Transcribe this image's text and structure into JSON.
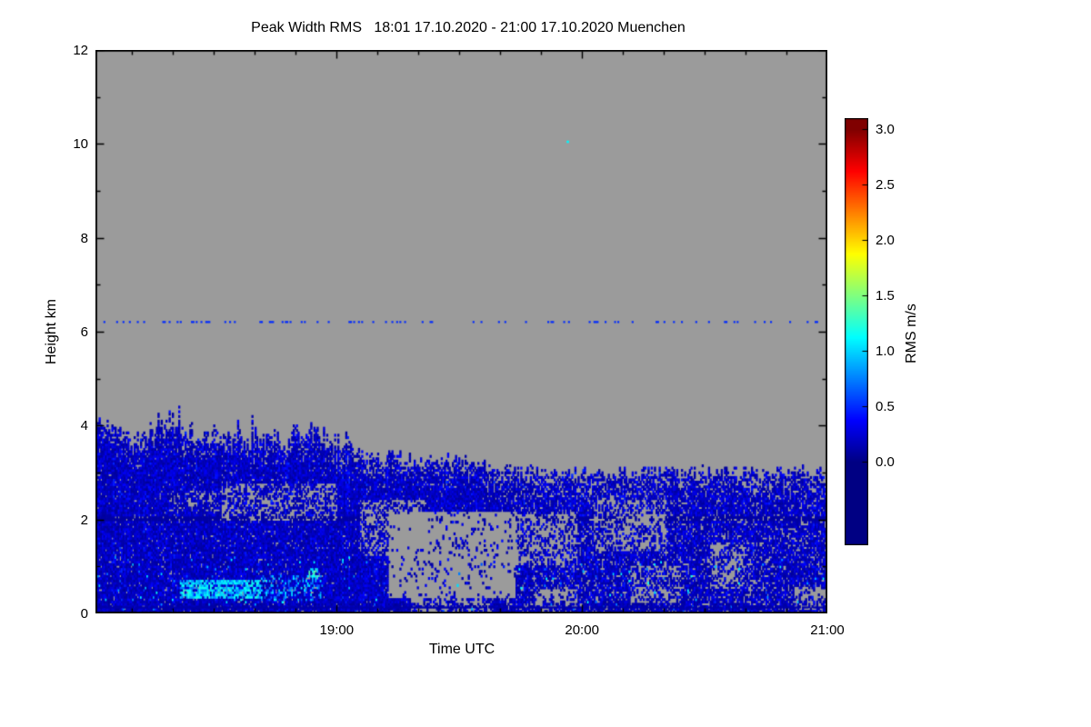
{
  "chart_data": {
    "type": "heatmap",
    "title": "Peak Width RMS   18:01 17.10.2020 - 21:00 17.10.2020 Muenchen",
    "xlabel": "Time UTC",
    "ylabel": "Height km",
    "x_start": "18:01",
    "x_end": "21:00",
    "x_start_min": 1081,
    "x_end_min": 1260,
    "x_minor_step_min": 10,
    "x_ticks": [
      {
        "label": "19:00",
        "frac": 0.3296
      },
      {
        "label": "20:00",
        "frac": 0.6648
      },
      {
        "label": "21:00",
        "frac": 1.0
      }
    ],
    "ylim": [
      0,
      12
    ],
    "y_ticks": [
      {
        "label": "0",
        "value": 0
      },
      {
        "label": "2",
        "value": 2
      },
      {
        "label": "4",
        "value": 4
      },
      {
        "label": "6",
        "value": 6
      },
      {
        "label": "8",
        "value": 8
      },
      {
        "label": "10",
        "value": 10
      },
      {
        "label": "12",
        "value": 12
      }
    ],
    "y_minor_step": 1,
    "no_data_color": "#9b9b9b",
    "colorbar": {
      "label": "RMS m/s",
      "range": [
        0,
        3
      ],
      "colormap": "jet",
      "ticks": [
        {
          "label": "3.0",
          "value": 3.0
        },
        {
          "label": "2.5",
          "value": 2.5
        },
        {
          "label": "2.0",
          "value": 2.0
        },
        {
          "label": "1.5",
          "value": 1.5
        },
        {
          "label": "1.0",
          "value": 1.0
        },
        {
          "label": "0.5",
          "value": 0.5
        },
        {
          "label": "0.0",
          "value": 0.0
        }
      ],
      "anchors": [
        [
          0.0,
          0,
          0,
          131
        ],
        [
          0.125,
          0,
          0,
          255
        ],
        [
          0.375,
          0,
          255,
          255
        ],
        [
          0.625,
          255,
          255,
          0
        ],
        [
          0.875,
          255,
          0,
          0
        ],
        [
          1.0,
          128,
          0,
          0
        ]
      ]
    },
    "description": "Time-height radar quicklook of peak width RMS. Echoes (RMS mostly 0.1-0.5 m/s, blue) are confined below about 4 km at 18:01, the echo top lowering to about 3 km after 19:30 and staying near 3 km until 21:00. Brighter cyan values near 1 m/s occur between 0.3 and 0.8 km from about 18:20 to 18:55. Gray denotes no data, including a large data gap between 19:15 and 19:45 below about 2 km and patchy gaps after 19:40. A single cyan pixel appears near 10 km around 19:57.",
    "field": {
      "seed": 1337,
      "cols": 460,
      "dh": 0.05,
      "top_profile": {
        "t": [
          0.0,
          0.02,
          0.05,
          0.08,
          0.11,
          0.14,
          0.17,
          0.2,
          0.23,
          0.26,
          0.29,
          0.32,
          0.35,
          0.38,
          0.41,
          0.44,
          0.47,
          0.5,
          0.53,
          0.56,
          0.6,
          0.7,
          0.8,
          0.9,
          1.0
        ],
        "km": [
          4.15,
          4.0,
          3.6,
          3.85,
          3.95,
          3.65,
          3.85,
          3.6,
          3.75,
          3.65,
          3.8,
          3.55,
          3.45,
          3.3,
          3.35,
          3.25,
          3.2,
          3.3,
          3.15,
          3.05,
          3.0,
          3.0,
          3.02,
          3.0,
          3.05
        ]
      },
      "gaps": [
        {
          "t0": 0.4,
          "t1": 0.575,
          "h0": 0.28,
          "h1": 2.15,
          "s": 0.9
        },
        {
          "t0": 0.43,
          "t1": 0.54,
          "h0": 0.0,
          "h1": 0.3,
          "s": 0.6
        },
        {
          "t0": 0.36,
          "t1": 0.45,
          "h0": 1.2,
          "h1": 2.4,
          "s": 0.55
        },
        {
          "t0": 0.17,
          "t1": 0.33,
          "h0": 1.95,
          "h1": 2.75,
          "s": 0.45
        },
        {
          "t0": 0.1,
          "t1": 0.18,
          "h0": 2.15,
          "h1": 2.6,
          "s": 0.3
        },
        {
          "t0": 0.57,
          "t1": 0.66,
          "h0": 1.0,
          "h1": 2.1,
          "s": 0.55
        },
        {
          "t0": 0.6,
          "t1": 0.66,
          "h0": 0.0,
          "h1": 0.5,
          "s": 0.65
        },
        {
          "t0": 0.68,
          "t1": 0.78,
          "h0": 1.3,
          "h1": 2.4,
          "s": 0.5
        },
        {
          "t0": 0.73,
          "t1": 0.8,
          "h0": 0.2,
          "h1": 1.0,
          "s": 0.45
        },
        {
          "t0": 0.84,
          "t1": 0.9,
          "h0": 0.5,
          "h1": 1.5,
          "s": 0.45
        },
        {
          "t0": 0.955,
          "t1": 1.0,
          "h0": 0.05,
          "h1": 0.55,
          "s": 0.7
        },
        {
          "t0": 0.55,
          "t1": 1.0,
          "h0": 0.0,
          "h1": 2.85,
          "s": 0.15
        }
      ],
      "bright": [
        {
          "t0": 0.115,
          "t1": 0.225,
          "h0": 0.28,
          "h1": 0.72,
          "p": 0.75,
          "v0": 0.7,
          "v1": 1.25
        },
        {
          "t0": 0.225,
          "t1": 0.31,
          "h0": 0.25,
          "h1": 0.8,
          "p": 0.35,
          "v0": 0.6,
          "v1": 1.1
        },
        {
          "t0": 0.29,
          "t1": 0.305,
          "h0": 0.75,
          "h1": 0.95,
          "p": 0.8,
          "v0": 0.9,
          "v1": 1.4
        }
      ],
      "dotted_lines": [
        {
          "h": 6.2,
          "prob": 0.18,
          "v": 0.5
        },
        {
          "h": 0.12,
          "prob": 0.85,
          "v": 0.12
        }
      ],
      "dots": [
        {
          "t": 0.645,
          "h": 10.05,
          "v": 1.1
        }
      ]
    }
  }
}
